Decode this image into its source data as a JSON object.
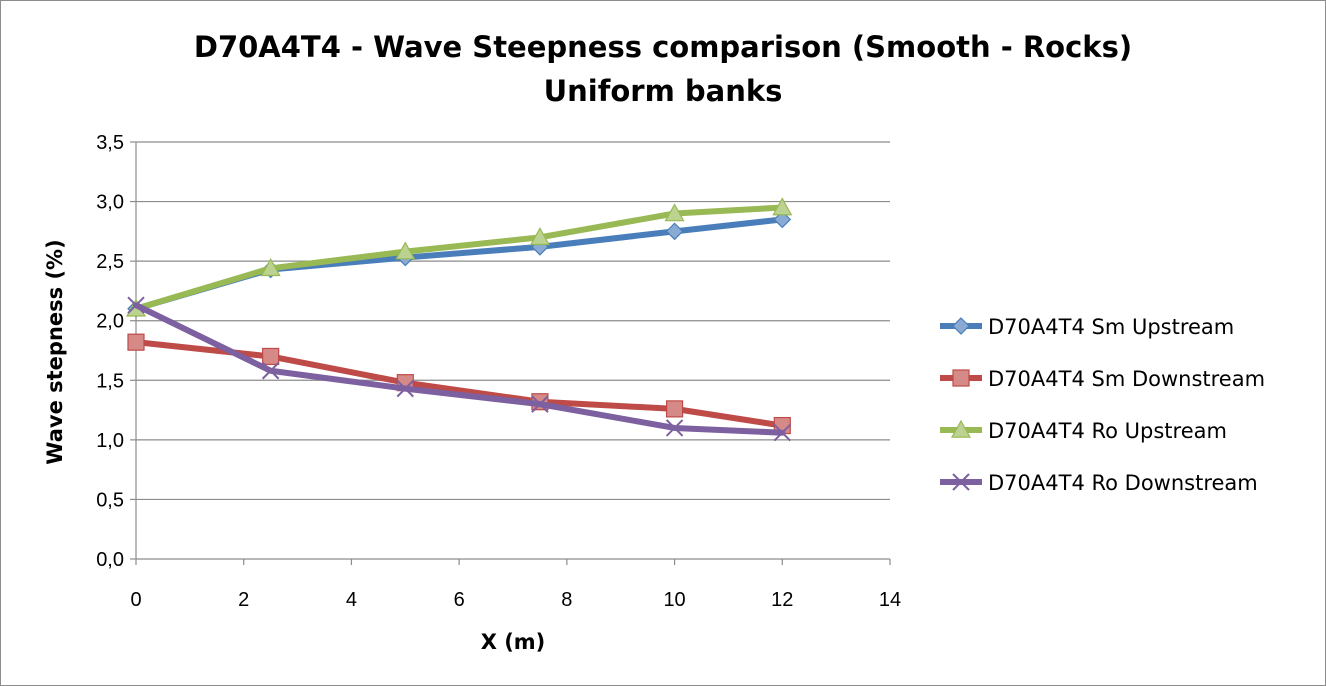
{
  "chart_data": {
    "type": "line",
    "title": "D70A4T4 - Wave Steepness comparison (Smooth - Rocks)",
    "subtitle": "Uniform banks",
    "xlabel": "X (m)",
    "ylabel": "Wave stepness (%)",
    "xlim": [
      0,
      14
    ],
    "ylim": [
      0,
      3.5
    ],
    "xticks": [
      "0",
      "2",
      "4",
      "6",
      "8",
      "10",
      "12",
      "14"
    ],
    "yticks": [
      "0,0",
      "0,5",
      "1,0",
      "1,5",
      "2,0",
      "2,5",
      "3,0",
      "3,5"
    ],
    "grid": "horizontal",
    "legend_position": "right",
    "series": [
      {
        "name": "D70A4T4 Sm Upstream",
        "color": "#4a7ebb",
        "marker": "diamond",
        "x": [
          0,
          2.5,
          5,
          7.5,
          10,
          12
        ],
        "y": [
          2.1,
          2.43,
          2.53,
          2.62,
          2.75,
          2.85
        ]
      },
      {
        "name": "D70A4T4 Sm Downstream",
        "color": "#be4b48",
        "marker": "square",
        "x": [
          0,
          2.5,
          5,
          7.5,
          10,
          12
        ],
        "y": [
          1.82,
          1.7,
          1.48,
          1.32,
          1.26,
          1.12
        ]
      },
      {
        "name": "D70A4T4 Ro Upstream",
        "color": "#98b954",
        "marker": "triangle",
        "x": [
          0,
          2.5,
          5,
          7.5,
          10,
          12
        ],
        "y": [
          2.1,
          2.44,
          2.58,
          2.7,
          2.9,
          2.95
        ]
      },
      {
        "name": "D70A4T4 Ro Downstream",
        "color": "#7d60a0",
        "marker": "x",
        "x": [
          0,
          2.5,
          5,
          7.5,
          10,
          12
        ],
        "y": [
          2.13,
          1.58,
          1.43,
          1.3,
          1.1,
          1.06
        ]
      }
    ]
  }
}
